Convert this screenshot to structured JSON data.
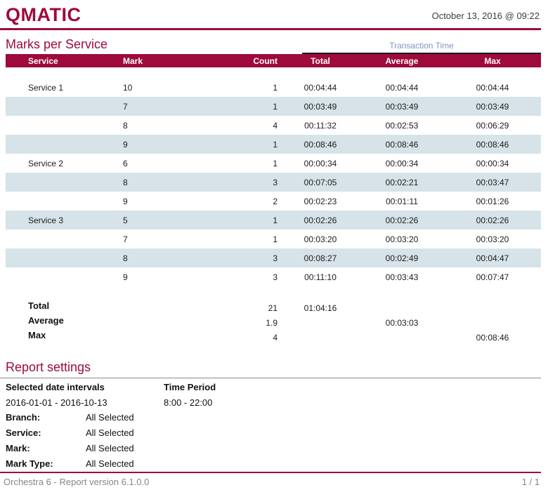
{
  "header": {
    "logo": "QMATIC",
    "date": "October 13, 2016 @ 09:22"
  },
  "report": {
    "title": "Marks per Service",
    "group_header": "Transaction Time",
    "columns": [
      "Service",
      "Mark",
      "Count",
      "Total",
      "Average",
      "Max"
    ],
    "rows": [
      [
        "Service 1",
        "10",
        "1",
        "00:04:44",
        "00:04:44",
        "00:04:44"
      ],
      [
        "",
        "7",
        "1",
        "00:03:49",
        "00:03:49",
        "00:03:49"
      ],
      [
        "",
        "8",
        "4",
        "00:11:32",
        "00:02:53",
        "00:06:29"
      ],
      [
        "",
        "9",
        "1",
        "00:08:46",
        "00:08:46",
        "00:08:46"
      ],
      [
        "Service 2",
        "6",
        "1",
        "00:00:34",
        "00:00:34",
        "00:00:34"
      ],
      [
        "",
        "8",
        "3",
        "00:07:05",
        "00:02:21",
        "00:03:47"
      ],
      [
        "",
        "9",
        "2",
        "00:02:23",
        "00:01:11",
        "00:01:26"
      ],
      [
        "Service 3",
        "5",
        "1",
        "00:02:26",
        "00:02:26",
        "00:02:26"
      ],
      [
        "",
        "7",
        "1",
        "00:03:20",
        "00:03:20",
        "00:03:20"
      ],
      [
        "",
        "8",
        "3",
        "00:08:27",
        "00:02:49",
        "00:04:47"
      ],
      [
        "",
        "9",
        "3",
        "00:11:10",
        "00:03:43",
        "00:07:47"
      ]
    ],
    "summary": [
      [
        "Total",
        "",
        "21",
        "01:04:16",
        "",
        ""
      ],
      [
        "Average",
        "",
        "1.9",
        "",
        "00:03:03",
        ""
      ],
      [
        "Max",
        "",
        "4",
        "",
        "",
        "00:08:46"
      ]
    ]
  },
  "settings": {
    "title": "Report settings",
    "date_intervals_label": "Selected date intervals",
    "date_intervals_value": "2016-01-01 - 2016-10-13",
    "time_period_label": "Time Period",
    "time_period_value": "8:00 - 22:00",
    "filters": [
      {
        "label": "Branch:",
        "value": "All Selected"
      },
      {
        "label": "Service:",
        "value": "All Selected"
      },
      {
        "label": "Mark:",
        "value": "All Selected"
      },
      {
        "label": "Mark Type:",
        "value": "All Selected"
      }
    ]
  },
  "footer": {
    "left": "Orchestra 6 - Report version 6.1.0.0",
    "right": "1 / 1"
  },
  "colors": {
    "brand": "#9e0b3b",
    "row_alt": "#d6e3e8",
    "transaction_label": "#8394c7",
    "muted_text": "#868686"
  }
}
